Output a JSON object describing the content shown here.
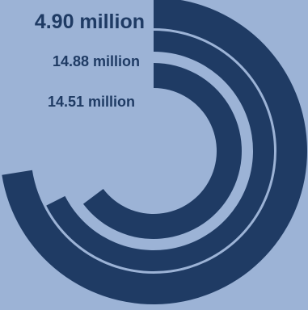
{
  "chart_data": {
    "type": "radial-bar",
    "series": [
      {
        "label": "4.90 million"
      },
      {
        "label": "14.88 million"
      },
      {
        "label": "14.51 million"
      }
    ],
    "colors": {
      "background": "#9cb3d6",
      "bar": "#1f3b64",
      "label": "#1f3b64"
    }
  }
}
